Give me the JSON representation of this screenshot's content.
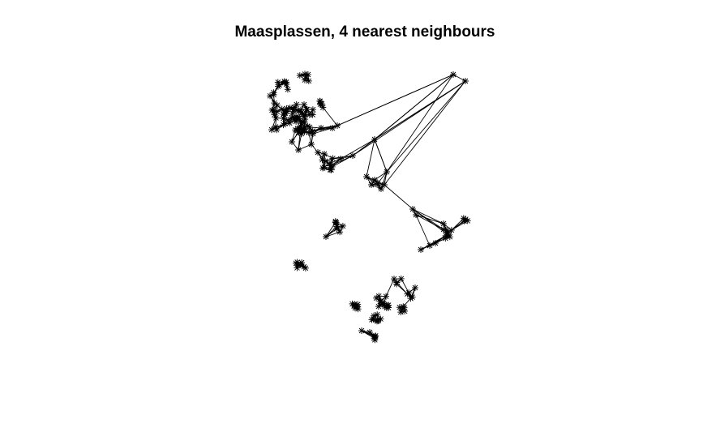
{
  "title": "Maasplassen, 4 nearest neighbours",
  "colors": {
    "background": "#ffffff",
    "ink": "#000000"
  },
  "graph": {
    "node_marker": "plus-with-cross",
    "note_units": "none"
  }
}
